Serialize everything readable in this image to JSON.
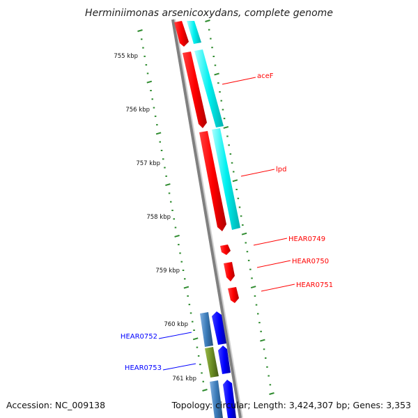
{
  "map": {
    "title": "Herminiimonas arsenicoxydans, complete genome",
    "footer_left": "Accession: NC_009138",
    "footer_right": "Topology: circular; Length: 3,424,307 bp; Genes: 3,353",
    "kbp_labels": [
      "755 kbp",
      "756 kbp",
      "757 kbp",
      "758 kbp",
      "759 kbp",
      "760 kbp",
      "761 kbp"
    ],
    "gene_labels": [
      "aceF",
      "lpd",
      "HEAR0749",
      "HEAR0750",
      "HEAR0751",
      "HEAR0752",
      "HEAR0753"
    ],
    "colors": {
      "forward_gene": "#ff0000",
      "forward_feature": "#00e0e0",
      "reverse_gene": "#0000ff",
      "reverse_feature": "#3a7ab8",
      "reverse_feature_alt": "#6b8e23",
      "backbone": "#888888",
      "gc_ticks": "#2e8b2e"
    }
  }
}
